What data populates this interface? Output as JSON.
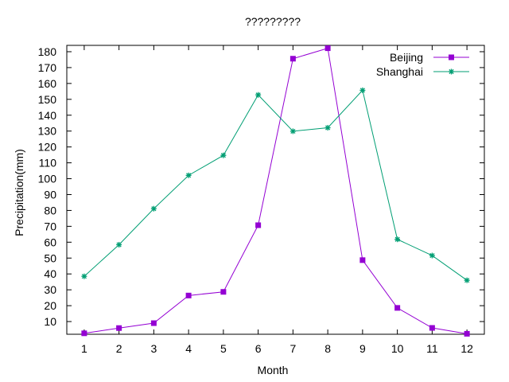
{
  "chart_data": {
    "type": "line",
    "title": "?????????",
    "xlabel": "Month",
    "ylabel": "Precipitation(mm)",
    "x": [
      1,
      2,
      3,
      4,
      5,
      6,
      7,
      8,
      9,
      10,
      11,
      12
    ],
    "xlim": [
      0.5,
      12.5
    ],
    "ylim": [
      2,
      184
    ],
    "x_ticks": [
      1,
      2,
      3,
      4,
      5,
      6,
      7,
      8,
      9,
      10,
      11,
      12
    ],
    "y_ticks": [
      10,
      20,
      30,
      40,
      50,
      60,
      70,
      80,
      90,
      100,
      110,
      120,
      130,
      140,
      150,
      160,
      170,
      180
    ],
    "grid": false,
    "legend_position": "top-right",
    "series": [
      {
        "name": "Beijing",
        "color": "#9400d3",
        "marker": "square",
        "values": [
          2.6,
          5.9,
          9.0,
          26.4,
          28.7,
          70.7,
          175.6,
          182.2,
          48.7,
          18.6,
          6.0,
          2.3
        ]
      },
      {
        "name": "Shanghai",
        "color": "#009e73",
        "marker": "star",
        "values": [
          38.5,
          58.4,
          81.1,
          102.1,
          114.7,
          152.8,
          129.9,
          132.1,
          155.7,
          61.8,
          51.6,
          36.0
        ]
      }
    ]
  }
}
